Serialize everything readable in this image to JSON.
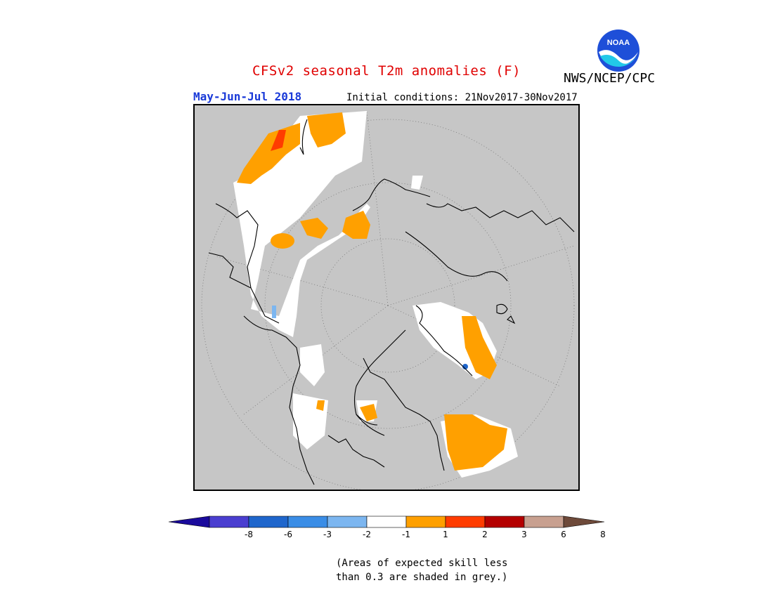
{
  "header": {
    "title": "CFSv2 seasonal T2m anomalies (F)",
    "organization": "NWS/NCEP/CPC",
    "period": "May-Jun-Jul 2018",
    "initial_conditions": "Initial conditions: 21Nov2017-30Nov2017",
    "logo_text": "NOAA"
  },
  "legend": {
    "colors": [
      "#1a0a9c",
      "#4a3ed0",
      "#1f66cc",
      "#3a8de6",
      "#7cb6f0",
      "#ffffff",
      "#ffa000",
      "#ff3c00",
      "#b40000",
      "#c8a090",
      "#6e4a3a"
    ],
    "labels": [
      "-8",
      "-6",
      "-3",
      "-2",
      "-1",
      "1",
      "2",
      "3",
      "6",
      "8"
    ],
    "note_line1": "(Areas of expected skill less",
    "note_line2": "than 0.3 are shaded in grey.)"
  },
  "map": {
    "projection": "north-polar-stereographic",
    "background_color": "#c6c6c6",
    "white_color": "#ffffff",
    "warm_color": "#ffa000",
    "hot_color": "#ff3c00",
    "cool_color": "#7cb6f0"
  }
}
